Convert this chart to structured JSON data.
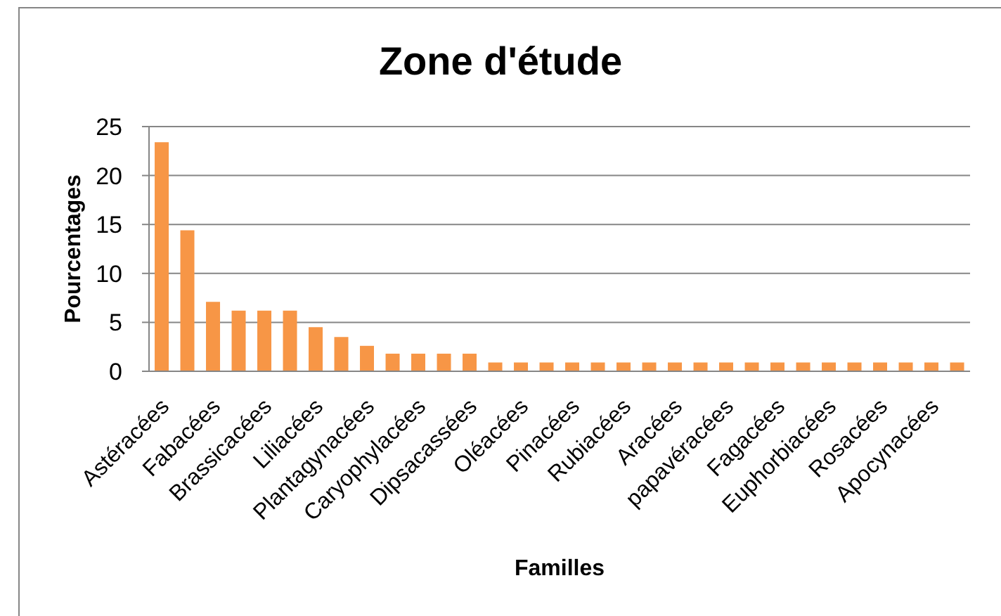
{
  "chart_data": {
    "type": "bar",
    "title": "Zone d'étude",
    "xlabel": "Familles",
    "ylabel": "Pourcentages",
    "categories": [
      "Astéracées",
      null,
      "Fabacées",
      null,
      "Brassicacées",
      null,
      "Liliacées",
      null,
      "Plantagynacées",
      null,
      "Caryophylacées",
      null,
      "Dipsacassées",
      null,
      "Oléacées",
      null,
      "Pinacées",
      null,
      "Rubiacées",
      null,
      "Aracées",
      null,
      "papavéracées",
      null,
      "Fagacées",
      null,
      "Euphorbiacées",
      null,
      "Rosacées",
      null,
      "Apocynacées",
      null
    ],
    "values": [
      23.4,
      14.4,
      7.1,
      6.2,
      6.2,
      6.2,
      4.5,
      3.5,
      2.6,
      1.8,
      1.8,
      1.8,
      1.8,
      0.9,
      0.9,
      0.9,
      0.9,
      0.9,
      0.9,
      0.9,
      0.9,
      0.9,
      0.9,
      0.9,
      0.9,
      0.9,
      0.9,
      0.9,
      0.9,
      0.9,
      0.9,
      0.9
    ],
    "color": "#f79646",
    "ylim": [
      0,
      25
    ],
    "yticks": [
      0,
      5,
      10,
      15,
      20,
      25
    ],
    "grid": "y"
  }
}
